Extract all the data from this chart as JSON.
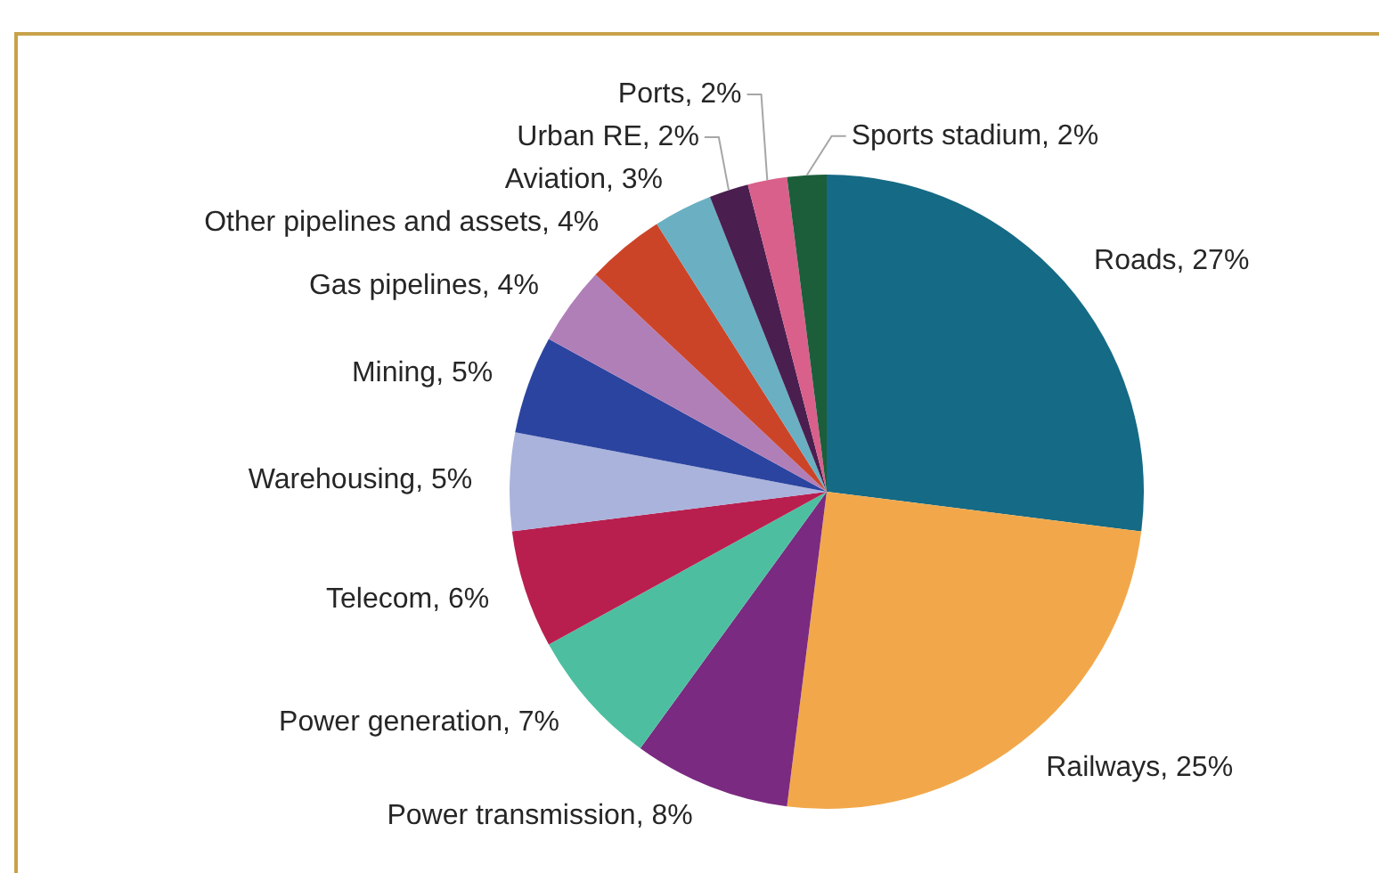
{
  "chart_data": {
    "type": "pie",
    "categories": [
      "Roads",
      "Railways",
      "Power transmission",
      "Power generation",
      "Telecom",
      "Warehousing",
      "Mining",
      "Gas pipelines",
      "Other pipelines and assets",
      "Aviation",
      "Urban RE",
      "Ports",
      "Sports stadium"
    ],
    "values": [
      27,
      25,
      8,
      7,
      6,
      5,
      5,
      4,
      4,
      3,
      2,
      2,
      2
    ],
    "colors": [
      "#156a85",
      "#f2a84a",
      "#7a2a80",
      "#4dbfa0",
      "#b81f4f",
      "#a9b3dc",
      "#2b44a0",
      "#b07fb8",
      "#cc4428",
      "#6aafc2",
      "#4a1f50",
      "#d9608a",
      "#1c5e3a"
    ],
    "value_labels": [
      ", 27%",
      ", 25%",
      ", 8%",
      ", 7%",
      ", 6%",
      ", 5%",
      ", 5%",
      ", 4%",
      ", 4%",
      ", 3%",
      ", 2%",
      ", 2%",
      ", 2%"
    ],
    "legend": false
  }
}
